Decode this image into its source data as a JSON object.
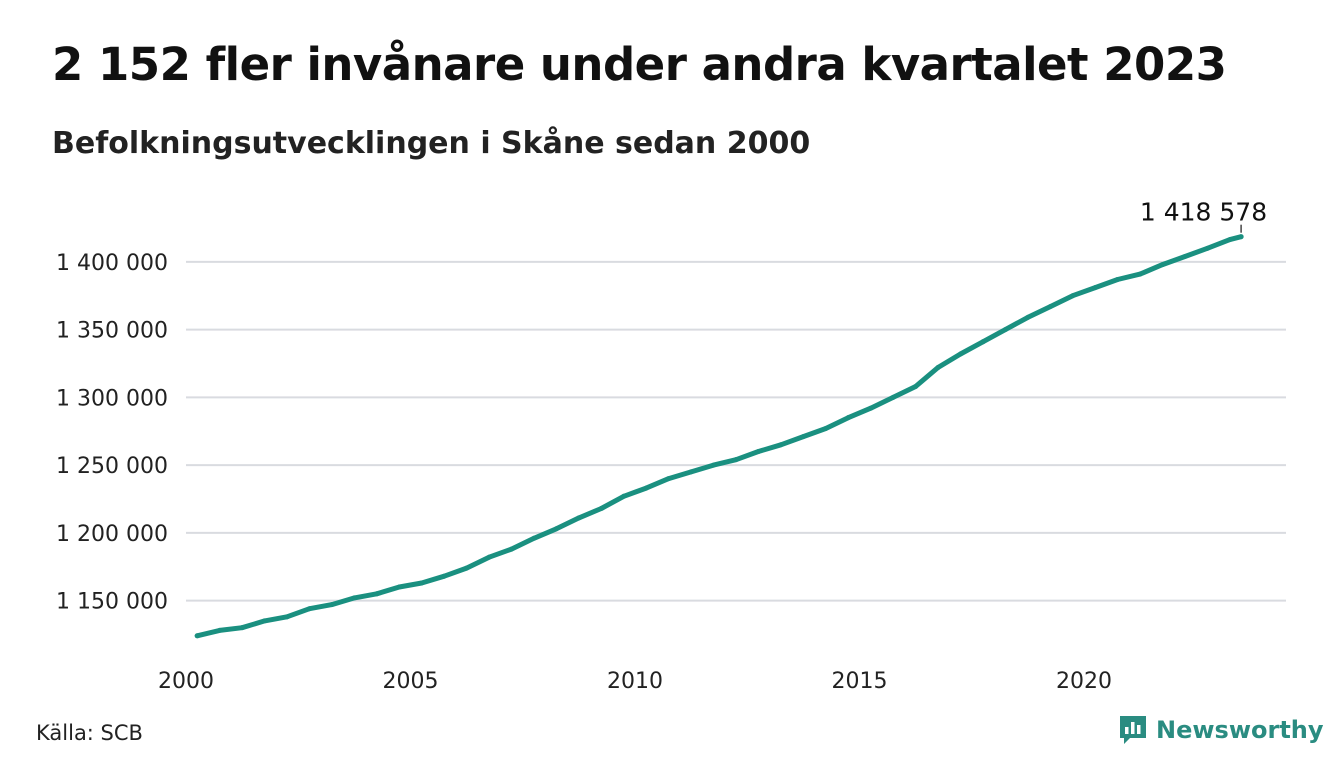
{
  "header": {
    "title": "2 152 fler invånare under andra kvartalet 2023",
    "subtitle": "Befolkningsutvecklingen i Skåne sedan 2000"
  },
  "footer": {
    "source": "Källa: SCB",
    "brand": "Newsworthy"
  },
  "colors": {
    "line": "#1a9080",
    "grid": "#d9dbe0",
    "brand": "#2a8c81"
  },
  "chart_data": {
    "type": "line",
    "title": "2 152 fler invånare under andra kvartalet 2023",
    "subtitle": "Befolkningsutvecklingen i Skåne sedan 2000",
    "xlabel": "",
    "ylabel": "",
    "xlim": [
      2000.0,
      2024.5
    ],
    "ylim": [
      1115000,
      1425000
    ],
    "x_ticks": [
      {
        "value": 2000,
        "label": "2000"
      },
      {
        "value": 2005,
        "label": "2005"
      },
      {
        "value": 2010,
        "label": "2010"
      },
      {
        "value": 2015,
        "label": "2015"
      },
      {
        "value": 2020,
        "label": "2020"
      }
    ],
    "y_ticks": [
      {
        "value": 1150000,
        "label": "1 150 000"
      },
      {
        "value": 1200000,
        "label": "1 200 000"
      },
      {
        "value": 1250000,
        "label": "1 250 000"
      },
      {
        "value": 1300000,
        "label": "1 300 000"
      },
      {
        "value": 1350000,
        "label": "1 350 000"
      },
      {
        "value": 1400000,
        "label": "1 400 000"
      }
    ],
    "grid": true,
    "legend": "none",
    "end_label": "1 418 578",
    "series": [
      {
        "values": [
          [
            2000.25,
            1124000
          ],
          [
            2000.75,
            1128000
          ],
          [
            2001.25,
            1130000
          ],
          [
            2001.75,
            1135000
          ],
          [
            2002.25,
            1138000
          ],
          [
            2002.75,
            1144000
          ],
          [
            2003.25,
            1147000
          ],
          [
            2003.75,
            1152000
          ],
          [
            2004.25,
            1155000
          ],
          [
            2004.75,
            1160000
          ],
          [
            2005.25,
            1163000
          ],
          [
            2005.75,
            1168000
          ],
          [
            2006.25,
            1174000
          ],
          [
            2006.75,
            1182000
          ],
          [
            2007.25,
            1188000
          ],
          [
            2007.75,
            1196000
          ],
          [
            2008.25,
            1203000
          ],
          [
            2008.75,
            1211000
          ],
          [
            2009.25,
            1218000
          ],
          [
            2009.75,
            1227000
          ],
          [
            2010.25,
            1233000
          ],
          [
            2010.75,
            1240000
          ],
          [
            2011.25,
            1245000
          ],
          [
            2011.75,
            1250000
          ],
          [
            2012.25,
            1254000
          ],
          [
            2012.75,
            1260000
          ],
          [
            2013.25,
            1265000
          ],
          [
            2013.75,
            1271000
          ],
          [
            2014.25,
            1277000
          ],
          [
            2014.75,
            1285000
          ],
          [
            2015.25,
            1292000
          ],
          [
            2015.75,
            1300000
          ],
          [
            2016.25,
            1308000
          ],
          [
            2016.75,
            1322000
          ],
          [
            2017.25,
            1332000
          ],
          [
            2017.75,
            1341000
          ],
          [
            2018.25,
            1350000
          ],
          [
            2018.75,
            1359000
          ],
          [
            2019.25,
            1367000
          ],
          [
            2019.75,
            1375000
          ],
          [
            2020.25,
            1381000
          ],
          [
            2020.75,
            1387000
          ],
          [
            2021.25,
            1391000
          ],
          [
            2021.75,
            1398000
          ],
          [
            2022.25,
            1404000
          ],
          [
            2022.75,
            1410000
          ],
          [
            2023.25,
            1416426
          ],
          [
            2023.5,
            1418578
          ]
        ]
      }
    ]
  }
}
